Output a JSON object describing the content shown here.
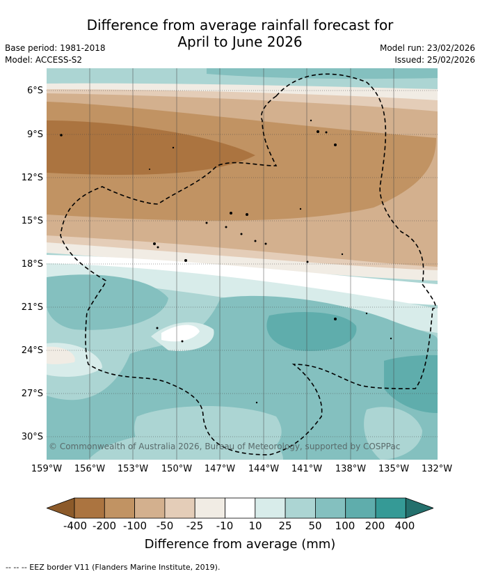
{
  "header": {
    "title_line1": "Difference from average rainfall forecast for",
    "title_line2": "April to June 2026",
    "base_period": "Base period: 1981-2018",
    "model": "Model: ACCESS-S2",
    "model_run": "Model run: 23/02/2026",
    "issued": "Issued: 25/02/2026"
  },
  "map": {
    "copyright": "© Commonwealth of Australia 2026, Bureau of Meteorology, supported by COSPPac",
    "lat_labels": [
      "6°S",
      "9°S",
      "12°S",
      "15°S",
      "18°S",
      "21°S",
      "24°S",
      "27°S",
      "30°S"
    ],
    "lon_labels": [
      "159°W",
      "156°W",
      "153°W",
      "150°W",
      "147°W",
      "144°W",
      "141°W",
      "138°W",
      "135°W",
      "132°W"
    ]
  },
  "colorbar": {
    "labels": [
      "-400",
      "-200",
      "-100",
      "-50",
      "-25",
      "-10",
      "10",
      "25",
      "50",
      "100",
      "200",
      "400"
    ],
    "colors": [
      "#8c5a2a",
      "#ab7440",
      "#c19363",
      "#d3b08e",
      "#e4cdb8",
      "#f1ece4",
      "#ffffff",
      "#d8ecea",
      "#acd5d3",
      "#84c0bf",
      "#5fadac",
      "#359a96",
      "#24706d"
    ],
    "title": "Difference from average (mm)"
  },
  "footer": {
    "eez_note": "--  --  -- EEZ border V11 (Flanders Marine Institute, 2019)."
  }
}
